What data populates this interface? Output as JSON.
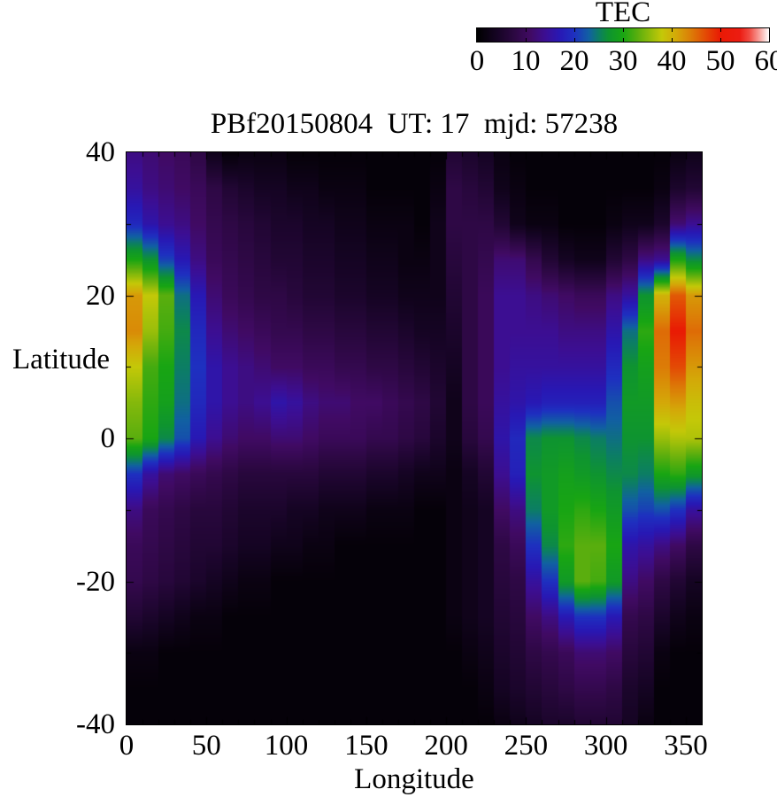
{
  "title": "PBf20150804  UT: 17  mjd: 57238",
  "colorbar": {
    "label": "TEC",
    "min": 0,
    "max": 60,
    "tick_labels": [
      0,
      10,
      20,
      30,
      40,
      50,
      60
    ],
    "notch_values": [
      10,
      20,
      30,
      40,
      50
    ],
    "palette_stops": [
      {
        "v": 0,
        "c": "#000000"
      },
      {
        "v": 4,
        "c": "#150423"
      },
      {
        "v": 8,
        "c": "#2e0845"
      },
      {
        "v": 11,
        "c": "#400a63"
      },
      {
        "v": 14,
        "c": "#3c0e92"
      },
      {
        "v": 17,
        "c": "#2818b4"
      },
      {
        "v": 20,
        "c": "#1e30c0"
      },
      {
        "v": 23,
        "c": "#1160a2"
      },
      {
        "v": 25,
        "c": "#0c7e64"
      },
      {
        "v": 27,
        "c": "#0e9430"
      },
      {
        "v": 30,
        "c": "#18a513"
      },
      {
        "v": 33,
        "c": "#5aae0e"
      },
      {
        "v": 36,
        "c": "#9abe0a"
      },
      {
        "v": 38,
        "c": "#c4c808"
      },
      {
        "v": 41,
        "c": "#d4a808"
      },
      {
        "v": 44,
        "c": "#dc7c07"
      },
      {
        "v": 47,
        "c": "#e34a05"
      },
      {
        "v": 50,
        "c": "#e91a04"
      },
      {
        "v": 54,
        "c": "#ec1c12"
      },
      {
        "v": 56,
        "c": "#f14b42"
      },
      {
        "v": 58,
        "c": "#f8a09a"
      },
      {
        "v": 60,
        "c": "#ffffff"
      }
    ]
  },
  "axes": {
    "x": {
      "label": "Longitude",
      "min": 0,
      "max": 360,
      "major_tick_labels": [
        0,
        50,
        100,
        150,
        200,
        250,
        300,
        350
      ],
      "minor_step": 10
    },
    "y": {
      "label": "Latitude",
      "min": -40,
      "max": 40,
      "major_tick_labels": [
        40,
        20,
        0,
        -20,
        -40
      ],
      "minor_step": 10
    }
  },
  "chart_data": {
    "type": "heatmap",
    "title": "PBf20150804  UT: 17  mjd: 57238",
    "xlabel": "Longitude",
    "ylabel": "Latitude",
    "zlabel": "TEC",
    "xlim": [
      0,
      360
    ],
    "ylim": [
      -40,
      40
    ],
    "zlim": [
      0,
      60
    ],
    "lon_step": 10,
    "lat_nodes": [
      40,
      35,
      30,
      25,
      20,
      15,
      10,
      5,
      0,
      -5,
      -10,
      -15,
      -20,
      -25,
      -30,
      -35,
      -40
    ],
    "columns_note": "36 longitude columns (0-360 by 10 deg); each array holds TEC values at lat_nodes from +40 down to -40",
    "columns": [
      [
        13,
        15,
        19,
        30,
        42,
        43,
        38,
        35,
        33,
        20,
        13,
        10,
        9,
        6,
        2,
        1,
        1
      ],
      [
        12,
        13,
        16,
        27,
        38,
        36,
        32,
        31,
        30,
        15,
        10,
        9,
        8,
        5,
        2,
        1,
        1
      ],
      [
        11,
        12,
        14,
        21,
        33,
        32,
        30,
        29,
        26,
        12,
        9,
        8,
        7,
        4,
        1,
        1,
        1
      ],
      [
        10,
        11,
        13,
        17,
        24,
        26,
        25,
        24,
        22,
        11,
        8,
        7,
        6,
        3,
        1,
        1,
        1
      ],
      [
        8,
        10,
        11,
        13,
        17,
        19,
        20,
        19,
        17,
        10,
        7,
        6,
        5,
        2,
        1,
        1,
        1
      ],
      [
        3,
        8,
        9,
        10,
        12,
        14,
        16,
        16,
        14,
        9,
        7,
        6,
        4,
        2,
        1,
        1,
        1
      ],
      [
        1,
        6,
        8,
        9,
        10,
        12,
        14,
        14,
        12,
        8,
        6,
        5,
        3,
        1,
        1,
        1,
        1
      ],
      [
        2,
        5,
        7,
        8,
        9,
        11,
        13,
        13,
        11,
        7,
        5,
        4,
        2,
        1,
        1,
        1,
        1
      ],
      [
        2,
        4,
        6,
        7,
        8,
        10,
        12,
        14,
        11,
        7,
        5,
        4,
        2,
        1,
        1,
        1,
        1
      ],
      [
        2,
        4,
        5,
        6,
        8,
        9,
        11,
        16,
        12,
        7,
        5,
        3,
        1,
        1,
        1,
        1,
        1
      ],
      [
        1,
        3,
        5,
        6,
        7,
        9,
        11,
        15,
        12,
        7,
        4,
        3,
        1,
        1,
        1,
        1,
        1
      ],
      [
        1,
        3,
        4,
        5,
        6,
        8,
        10,
        13,
        11,
        7,
        4,
        2,
        1,
        1,
        1,
        1,
        1
      ],
      [
        1,
        2,
        4,
        5,
        6,
        8,
        10,
        12,
        10,
        6,
        3,
        2,
        1,
        1,
        1,
        1,
        1
      ],
      [
        1,
        2,
        3,
        4,
        5,
        7,
        9,
        12,
        10,
        6,
        3,
        1,
        1,
        1,
        1,
        1,
        1
      ],
      [
        1,
        2,
        3,
        4,
        5,
        7,
        9,
        11,
        10,
        6,
        3,
        1,
        1,
        1,
        1,
        1,
        1
      ],
      [
        1,
        1,
        2,
        3,
        4,
        6,
        8,
        11,
        9,
        5,
        2,
        1,
        1,
        1,
        1,
        1,
        1
      ],
      [
        1,
        1,
        2,
        3,
        4,
        6,
        8,
        10,
        9,
        5,
        2,
        1,
        1,
        1,
        1,
        1,
        1
      ],
      [
        1,
        1,
        2,
        2,
        3,
        5,
        7,
        9,
        8,
        4,
        2,
        1,
        1,
        1,
        1,
        1,
        1
      ],
      [
        1,
        1,
        1,
        2,
        3,
        4,
        6,
        8,
        7,
        3,
        1,
        1,
        1,
        1,
        1,
        1,
        1
      ],
      [
        1,
        2,
        3,
        3,
        3,
        4,
        5,
        6,
        5,
        3,
        1,
        1,
        1,
        1,
        1,
        1,
        1
      ],
      [
        6,
        8,
        8,
        7,
        6,
        5,
        4,
        3,
        3,
        2,
        2,
        2,
        2,
        2,
        1,
        1,
        1
      ],
      [
        5,
        7,
        8,
        8,
        8,
        8,
        8,
        8,
        7,
        4,
        3,
        3,
        3,
        3,
        2,
        1,
        1
      ],
      [
        4,
        6,
        8,
        9,
        10,
        10,
        10,
        10,
        9,
        6,
        4,
        4,
        4,
        4,
        3,
        2,
        1
      ],
      [
        2,
        3,
        6,
        12,
        14,
        14,
        14,
        15,
        16,
        14,
        11,
        8,
        7,
        6,
        5,
        4,
        2
      ],
      [
        1,
        2,
        3,
        12,
        14,
        14,
        15,
        16,
        19,
        18,
        13,
        10,
        8,
        7,
        6,
        5,
        3
      ],
      [
        1,
        1,
        2,
        9,
        13,
        14,
        15,
        17,
        26,
        27,
        25,
        20,
        15,
        11,
        8,
        6,
        4
      ],
      [
        1,
        1,
        2,
        6,
        12,
        14,
        15,
        18,
        27,
        28,
        28,
        26,
        20,
        13,
        9,
        7,
        5
      ],
      [
        1,
        1,
        1,
        4,
        11,
        13,
        15,
        18,
        27,
        29,
        30,
        31,
        28,
        17,
        10,
        8,
        5
      ],
      [
        1,
        1,
        1,
        3,
        10,
        13,
        15,
        18,
        26,
        28,
        31,
        33,
        33,
        20,
        12,
        9,
        6
      ],
      [
        1,
        1,
        1,
        3,
        10,
        13,
        15,
        18,
        25,
        27,
        30,
        33,
        32,
        20,
        12,
        9,
        6
      ],
      [
        1,
        1,
        2,
        6,
        13,
        16,
        19,
        22,
        24,
        26,
        28,
        30,
        28,
        17,
        11,
        8,
        6
      ],
      [
        1,
        1,
        3,
        8,
        15,
        24,
        27,
        28,
        27,
        26,
        22,
        16,
        13,
        9,
        7,
        5,
        4
      ],
      [
        1,
        1,
        3,
        13,
        27,
        31,
        29,
        28,
        27,
        25,
        21,
        15,
        11,
        8,
        6,
        4,
        2
      ],
      [
        1,
        2,
        5,
        14,
        40,
        45,
        44,
        41,
        36,
        30,
        22,
        13,
        8,
        5,
        2,
        1,
        1
      ],
      [
        2,
        5,
        12,
        30,
        46,
        50,
        47,
        42,
        37,
        31,
        20,
        11,
        6,
        3,
        1,
        1,
        1
      ],
      [
        3,
        6,
        14,
        26,
        42,
        45,
        42,
        39,
        37,
        28,
        15,
        8,
        4,
        2,
        1,
        1,
        1
      ]
    ]
  }
}
